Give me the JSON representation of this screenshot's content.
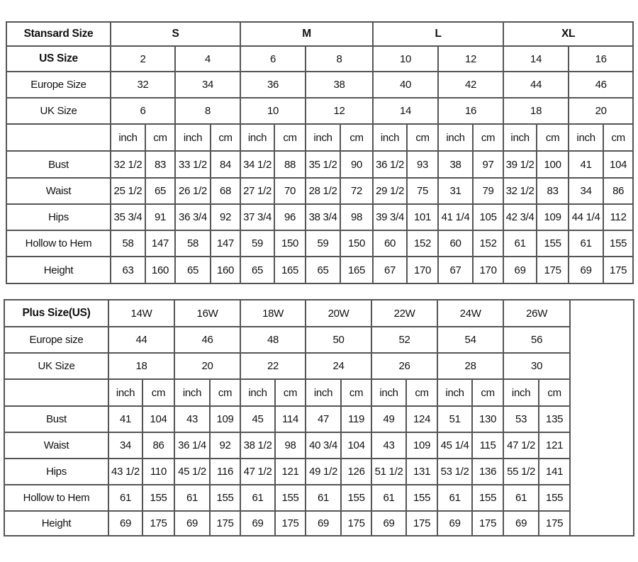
{
  "standard": {
    "header_label": "Stansard Size",
    "groups": [
      "S",
      "M",
      "L",
      "XL"
    ],
    "us_label": "US Size",
    "us": [
      "2",
      "4",
      "6",
      "8",
      "10",
      "12",
      "14",
      "16"
    ],
    "europe_label": "Europe Size",
    "europe": [
      "32",
      "34",
      "36",
      "38",
      "40",
      "42",
      "44",
      "46"
    ],
    "uk_label": "UK Size",
    "uk": [
      "6",
      "8",
      "10",
      "12",
      "14",
      "16",
      "18",
      "20"
    ],
    "units": [
      "inch",
      "cm"
    ],
    "measurements": [
      {
        "label": "Bust",
        "values": [
          "32 1/2",
          "83",
          "33 1/2",
          "84",
          "34 1/2",
          "88",
          "35 1/2",
          "90",
          "36 1/2",
          "93",
          "38",
          "97",
          "39 1/2",
          "100",
          "41",
          "104"
        ]
      },
      {
        "label": "Waist",
        "values": [
          "25 1/2",
          "65",
          "26 1/2",
          "68",
          "27 1/2",
          "70",
          "28 1/2",
          "72",
          "29 1/2",
          "75",
          "31",
          "79",
          "32 1/2",
          "83",
          "34",
          "86"
        ]
      },
      {
        "label": "Hips",
        "values": [
          "35 3/4",
          "91",
          "36 3/4",
          "92",
          "37 3/4",
          "96",
          "38 3/4",
          "98",
          "39 3/4",
          "101",
          "41 1/4",
          "105",
          "42 3/4",
          "109",
          "44 1/4",
          "112"
        ]
      },
      {
        "label": "Hollow to Hem",
        "values": [
          "58",
          "147",
          "58",
          "147",
          "59",
          "150",
          "59",
          "150",
          "60",
          "152",
          "60",
          "152",
          "61",
          "155",
          "61",
          "155"
        ]
      },
      {
        "label": "Height",
        "values": [
          "63",
          "160",
          "65",
          "160",
          "65",
          "165",
          "65",
          "165",
          "67",
          "170",
          "67",
          "170",
          "69",
          "175",
          "69",
          "175"
        ]
      }
    ]
  },
  "plus": {
    "header_label": "Plus Size(US)",
    "sizes": [
      "14W",
      "16W",
      "18W",
      "20W",
      "22W",
      "24W",
      "26W"
    ],
    "europe_label": "Europe size",
    "europe": [
      "44",
      "46",
      "48",
      "50",
      "52",
      "54",
      "56"
    ],
    "uk_label": "UK Size",
    "uk": [
      "18",
      "20",
      "22",
      "24",
      "26",
      "28",
      "30"
    ],
    "units": [
      "inch",
      "cm"
    ],
    "measurements": [
      {
        "label": "Bust",
        "values": [
          "41",
          "104",
          "43",
          "109",
          "45",
          "114",
          "47",
          "119",
          "49",
          "124",
          "51",
          "130",
          "53",
          "135"
        ]
      },
      {
        "label": "Waist",
        "values": [
          "34",
          "86",
          "36 1/4",
          "92",
          "38 1/2",
          "98",
          "40 3/4",
          "104",
          "43",
          "109",
          "45 1/4",
          "115",
          "47 1/2",
          "121"
        ]
      },
      {
        "label": "Hips",
        "values": [
          "43 1/2",
          "110",
          "45 1/2",
          "116",
          "47 1/2",
          "121",
          "49 1/2",
          "126",
          "51 1/2",
          "131",
          "53 1/2",
          "136",
          "55 1/2",
          "141"
        ]
      },
      {
        "label": "Hollow to Hem",
        "values": [
          "61",
          "155",
          "61",
          "155",
          "61",
          "155",
          "61",
          "155",
          "61",
          "155",
          "61",
          "155",
          "61",
          "155"
        ]
      },
      {
        "label": "Height",
        "values": [
          "69",
          "175",
          "69",
          "175",
          "69",
          "175",
          "69",
          "175",
          "69",
          "175",
          "69",
          "175",
          "69",
          "175"
        ]
      }
    ]
  }
}
